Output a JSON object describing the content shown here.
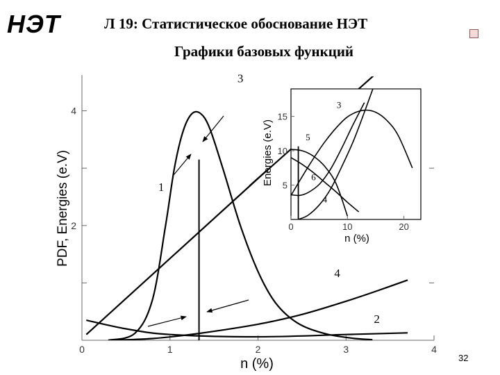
{
  "header": {
    "logo": "НЭТ",
    "title": "Л 19: Статистическое обоснование НЭТ",
    "subtitle": "Графики базовых функций"
  },
  "footer": {
    "page_number": "32"
  },
  "chart_data": [
    {
      "type": "line",
      "xlabel": "n (%)",
      "ylabel": "PDF, Energies (e.V)",
      "xlim": [
        0,
        4
      ],
      "ylim": [
        0,
        4.6
      ],
      "x_ticks": [
        "0",
        "1",
        "2",
        "3",
        "4"
      ],
      "y_ticks": [
        "2",
        "4"
      ],
      "vertical_line_x": 1.33,
      "curves": [
        {
          "label": "1",
          "x": [
            0.3,
            0.6,
            0.8,
            0.95,
            1.05,
            1.15,
            1.25,
            1.35,
            1.45,
            1.6,
            1.8,
            2.0,
            2.2,
            2.45,
            2.75,
            3.05,
            3.3
          ],
          "y": [
            0,
            0.12,
            0.7,
            2.0,
            3.0,
            3.65,
            3.95,
            3.95,
            3.7,
            3.0,
            2.0,
            1.2,
            0.65,
            0.3,
            0.12,
            0.04,
            0.01
          ]
        },
        {
          "label": "2",
          "x": [
            0.05,
            0.5,
            1.0,
            2.0,
            3.0,
            3.7
          ],
          "y": [
            0.35,
            0.2,
            0.1,
            0.06,
            0.1,
            0.13
          ]
        },
        {
          "label": "3",
          "x": [
            0.05,
            2.0,
            2.0,
            4.0
          ],
          "y": [
            0.1,
            2.82,
            2.82,
            5.55
          ]
        },
        {
          "label": "4",
          "x": [
            0.3,
            0.8,
            1.33,
            2.0,
            2.5,
            3.0,
            3.35,
            3.7
          ],
          "y": [
            0.0,
            0.03,
            0.12,
            0.28,
            0.45,
            0.68,
            0.86,
            1.05
          ]
        }
      ],
      "curve_labels": [
        {
          "text": "1",
          "x": 0.9,
          "y": 2.6
        },
        {
          "text": "2",
          "x": 3.35,
          "y": 0.3
        },
        {
          "text": "3",
          "x": 1.8,
          "y": 4.5
        },
        {
          "text": "4",
          "x": 2.9,
          "y": 1.1
        }
      ]
    },
    {
      "type": "line",
      "xlabel": "n (%)",
      "ylabel": "Energies (e.V)",
      "xlim": [
        0,
        23
      ],
      "ylim": [
        0,
        19
      ],
      "x_ticks": [
        "0",
        "10",
        "20"
      ],
      "y_ticks": [
        "5",
        "10",
        "15"
      ],
      "vertical_line_x": 1.3,
      "curves": [
        {
          "label": "3",
          "x": [
            0,
            3,
            6,
            9,
            11,
            13,
            15,
            17,
            19,
            21.5
          ],
          "y": [
            3.5,
            7.6,
            11.3,
            14.2,
            15.4,
            15.9,
            15.6,
            14.4,
            12.2,
            7.5
          ]
        },
        {
          "label": "5",
          "x": [
            0,
            2,
            4,
            6,
            8,
            10
          ],
          "y": [
            10.2,
            10.0,
            9.2,
            7.7,
            5.2,
            0.5
          ]
        },
        {
          "label": "6",
          "x": [
            0,
            2,
            4,
            6,
            8,
            10,
            12
          ],
          "y": [
            9.0,
            8.0,
            6.8,
            5.4,
            4.0,
            2.5,
            1.1
          ]
        },
        {
          "label": "4",
          "x": [
            0,
            1.5,
            3,
            5,
            7,
            9,
            11,
            13
          ],
          "y": [
            3.6,
            3.5,
            3.9,
            5.1,
            7.3,
            10.4,
            13.8,
            17.0
          ]
        },
        {
          "label": "",
          "x": [
            1.3,
            3,
            5,
            7,
            9,
            11,
            13,
            14.5
          ],
          "y": [
            0,
            0.6,
            2.1,
            4.4,
            7.7,
            11.3,
            15.6,
            19.0
          ]
        }
      ],
      "curve_labels": [
        {
          "text": "3",
          "x": 8.5,
          "y": 16.2
        },
        {
          "text": "5",
          "x": 3.0,
          "y": 11.5
        },
        {
          "text": "6",
          "x": 4.0,
          "y": 5.7
        },
        {
          "text": "4",
          "x": 6.0,
          "y": 2.5
        }
      ]
    }
  ]
}
